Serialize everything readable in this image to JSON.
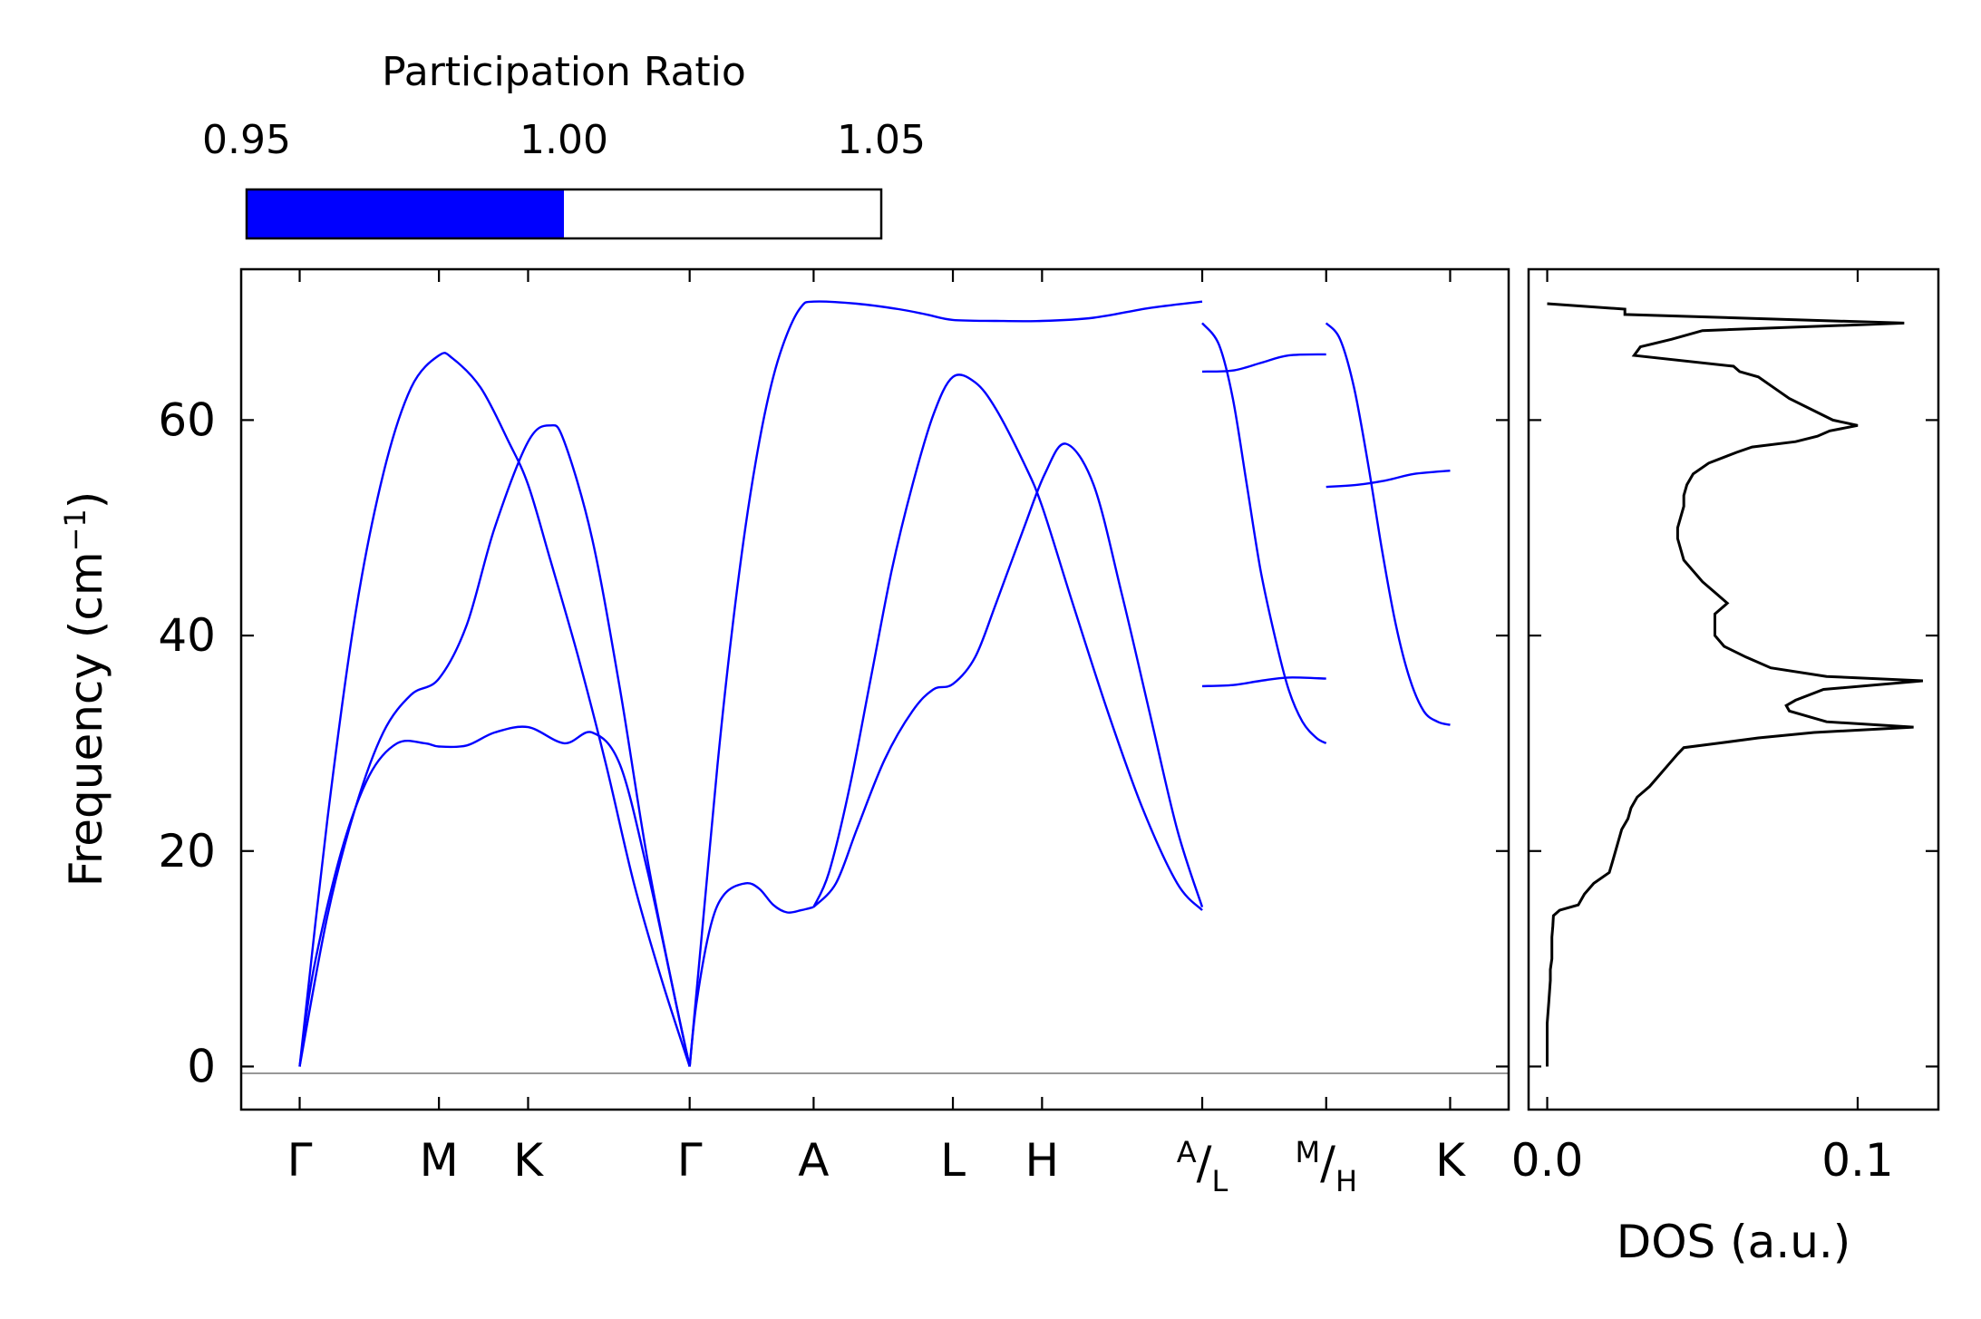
{
  "chart_data": {
    "type": "line",
    "colorbar": {
      "title": "Participation Ratio",
      "ticks": [
        "0.95",
        "1.00",
        "1.05"
      ],
      "range": [
        0.95,
        1.05
      ],
      "filled_value": 1.0,
      "fill_color": "#0000ff"
    },
    "band_structure": {
      "ylabel": "Frequency (cm",
      "ylabel_sup": "−1",
      "ylabel_tail": ")",
      "ylim": [
        -4,
        74
      ],
      "yticks": [
        0,
        20,
        40,
        60
      ],
      "ytick_labels": [
        "0",
        "20",
        "40",
        "60"
      ],
      "line_color": "#0000ff",
      "zero_line_color": "#888888",
      "kpoints": [
        {
          "name": "gamma1",
          "pos": 0.0,
          "label": "Γ"
        },
        {
          "name": "m",
          "pos": 1.0,
          "label": "M"
        },
        {
          "name": "k1",
          "pos": 1.64,
          "label": "K"
        },
        {
          "name": "gamma2",
          "pos": 2.8,
          "label": "Γ"
        },
        {
          "name": "a",
          "pos": 3.69,
          "label": "A"
        },
        {
          "name": "l",
          "pos": 4.69,
          "label": "L"
        },
        {
          "name": "h",
          "pos": 5.33,
          "label": "H"
        },
        {
          "name": "al",
          "pos": 6.48,
          "label_top": "A",
          "label_bottom": "L"
        },
        {
          "name": "mh",
          "pos": 7.37,
          "label_top": "M",
          "label_bottom": "H"
        },
        {
          "name": "k2",
          "pos": 8.26,
          "label": "K"
        }
      ],
      "xlim": [
        -0.42,
        8.68
      ],
      "series": [
        {
          "name": "top-left-acoustic",
          "x": [
            0,
            0.2,
            0.4,
            0.6,
            0.8,
            1.0,
            1.1,
            1.3,
            1.5,
            1.64,
            1.8,
            2.0,
            2.2,
            2.4,
            2.6,
            2.8
          ],
          "y": [
            0,
            23,
            42,
            55,
            63,
            66,
            65.7,
            63,
            58,
            54,
            47,
            38,
            28,
            17,
            8,
            0
          ]
        },
        {
          "name": "mid-left-acoustic",
          "x": [
            0,
            0.2,
            0.4,
            0.6,
            0.8,
            1.0,
            1.2,
            1.4,
            1.64,
            1.8,
            1.9,
            2.1,
            2.3,
            2.5,
            2.7,
            2.8
          ],
          "y": [
            0,
            14,
            24,
            31,
            34.5,
            36,
            41,
            50,
            58,
            59.5,
            58,
            49,
            35,
            19,
            6,
            0
          ]
        },
        {
          "name": "bottom-left-acoustic",
          "x": [
            0,
            0.1,
            0.3,
            0.5,
            0.7,
            0.9,
            1.0,
            1.2,
            1.4,
            1.64,
            1.9,
            2.1,
            2.3,
            2.5,
            2.7,
            2.8
          ],
          "y": [
            0,
            9,
            20,
            27,
            30,
            30,
            29.7,
            29.8,
            31,
            31.5,
            30,
            31,
            28,
            18,
            6,
            0
          ]
        },
        {
          "name": "gamma-a-upper",
          "x": [
            2.8,
            2.9,
            3.0,
            3.1,
            3.2,
            3.3,
            3.4,
            3.5,
            3.6,
            3.69,
            4.0,
            4.3,
            4.5,
            4.69,
            5.0,
            5.33,
            5.7,
            6.1,
            6.48
          ],
          "y": [
            0,
            14,
            28,
            40,
            50,
            58,
            64,
            68,
            70.5,
            71,
            70.8,
            70.3,
            69.8,
            69.3,
            69.2,
            69.2,
            69.5,
            70.4,
            71
          ]
        },
        {
          "name": "gamma-a-lower",
          "x": [
            2.8,
            2.85,
            2.95,
            3.05,
            3.2,
            3.3,
            3.4,
            3.5,
            3.6,
            3.69
          ],
          "y": [
            0,
            6,
            13,
            16,
            17,
            16.5,
            15,
            14.3,
            14.5,
            14.8
          ]
        },
        {
          "name": "a-h-upper",
          "x": [
            3.69,
            3.8,
            3.95,
            4.1,
            4.25,
            4.4,
            4.55,
            4.69,
            4.85,
            5.0,
            5.2,
            5.33,
            5.55,
            5.8,
            6.05,
            6.3,
            6.48
          ],
          "y": [
            14.8,
            18,
            26,
            36,
            46,
            54,
            60.5,
            64,
            63.5,
            61,
            56,
            52,
            43,
            33,
            24,
            17,
            14.5
          ]
        },
        {
          "name": "a-h-lower",
          "x": [
            3.69,
            3.85,
            4.0,
            4.2,
            4.4,
            4.55,
            4.69,
            4.85,
            5.0,
            5.2,
            5.35,
            5.5,
            5.7,
            5.9,
            6.1,
            6.3,
            6.48
          ],
          "y": [
            14.8,
            17,
            22,
            28.5,
            33,
            35,
            35.5,
            38,
            43,
            50,
            55,
            57.8,
            54,
            44,
            33,
            22,
            14.8
          ]
        },
        {
          "name": "al-mh-steep",
          "x": [
            6.48,
            6.6,
            6.7,
            6.8,
            6.9,
            7.0,
            7.1,
            7.2,
            7.3,
            7.37
          ],
          "y": [
            69,
            67,
            62,
            54,
            46,
            40,
            35,
            32,
            30.5,
            30
          ]
        },
        {
          "name": "al-mh-upper-flat",
          "x": [
            6.48,
            6.7,
            6.9,
            7.1,
            7.37
          ],
          "y": [
            64.5,
            64.6,
            65.3,
            66,
            66.1
          ]
        },
        {
          "name": "al-mh-lower-flat",
          "x": [
            6.48,
            6.7,
            6.9,
            7.1,
            7.37
          ],
          "y": [
            35.3,
            35.4,
            35.8,
            36.1,
            36
          ]
        },
        {
          "name": "mh-k-steep",
          "x": [
            7.37,
            7.47,
            7.57,
            7.67,
            7.77,
            7.87,
            7.97,
            8.07,
            8.17,
            8.26
          ],
          "y": [
            69,
            67.5,
            63,
            56,
            48,
            41,
            36,
            33,
            32,
            31.7
          ]
        },
        {
          "name": "mh-k-flat",
          "x": [
            7.37,
            7.6,
            7.8,
            8.0,
            8.26
          ],
          "y": [
            53.8,
            54,
            54.4,
            55,
            55.3
          ]
        }
      ]
    },
    "dos": {
      "xlabel": "DOS (a.u.)",
      "xlim": [
        -0.006,
        0.126
      ],
      "xticks": [
        0.0,
        0.1
      ],
      "xtick_labels": [
        "0.0",
        "0.1"
      ],
      "line_color": "#000000",
      "freq": [
        0,
        2,
        4,
        6,
        8,
        9,
        10,
        12,
        13,
        14,
        14.5,
        15,
        15.5,
        16,
        17,
        18,
        19,
        20,
        21,
        22,
        23,
        24,
        25,
        26,
        27,
        28,
        29,
        29.6,
        30,
        30.5,
        31,
        31.5,
        32,
        33,
        33.5,
        34,
        35,
        35.8,
        36.2,
        37,
        38,
        39,
        40,
        42,
        43,
        44,
        45,
        46,
        47,
        48,
        49,
        50,
        51,
        52,
        53,
        54,
        55,
        56,
        57,
        57.5,
        58,
        58.5,
        59,
        59.5,
        60,
        61,
        62,
        63,
        64,
        64.5,
        65,
        66,
        66.8,
        67.5,
        68.3,
        69,
        69.8,
        70.3,
        70.8
      ],
      "dos": [
        0.0,
        0.0,
        0.0,
        0.0005,
        0.001,
        0.001,
        0.0015,
        0.0015,
        0.0018,
        0.002,
        0.004,
        0.01,
        0.011,
        0.012,
        0.015,
        0.02,
        0.021,
        0.022,
        0.023,
        0.024,
        0.026,
        0.027,
        0.029,
        0.033,
        0.036,
        0.039,
        0.042,
        0.044,
        0.055,
        0.068,
        0.086,
        0.118,
        0.09,
        0.078,
        0.077,
        0.08,
        0.089,
        0.121,
        0.09,
        0.072,
        0.064,
        0.057,
        0.054,
        0.054,
        0.058,
        0.054,
        0.05,
        0.047,
        0.044,
        0.043,
        0.042,
        0.042,
        0.043,
        0.044,
        0.044,
        0.045,
        0.047,
        0.052,
        0.061,
        0.066,
        0.08,
        0.087,
        0.091,
        0.1,
        0.092,
        0.085,
        0.078,
        0.073,
        0.068,
        0.062,
        0.06,
        0.028,
        0.03,
        0.04,
        0.05,
        0.115,
        0.025,
        0.025,
        0.0
      ]
    }
  }
}
